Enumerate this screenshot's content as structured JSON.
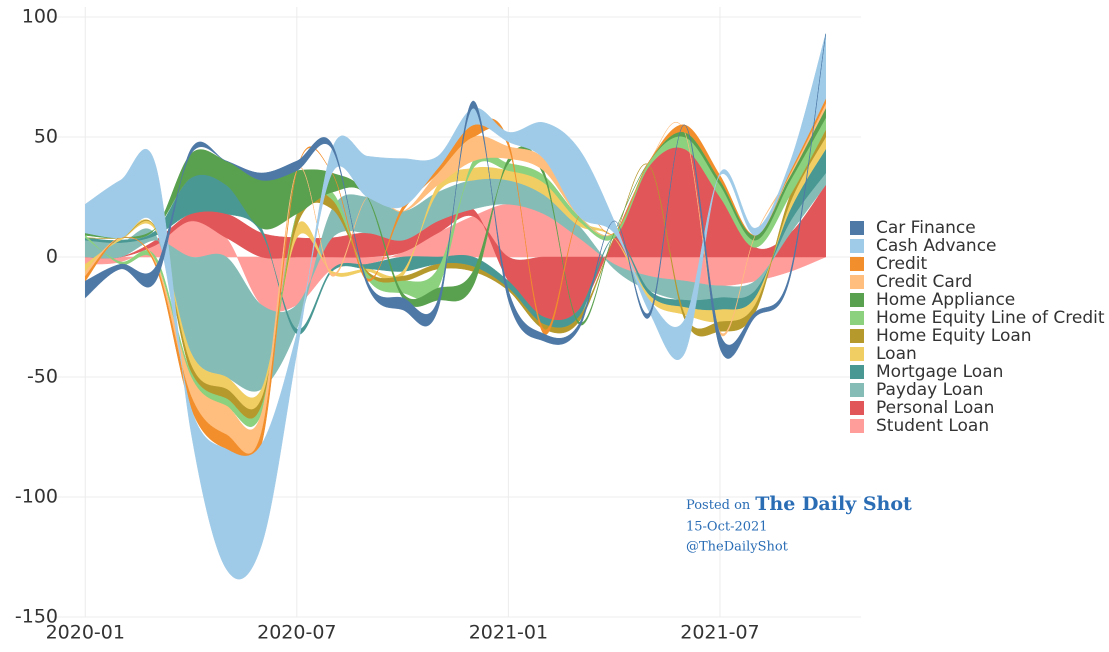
{
  "chart_data": {
    "type": "diverging-area",
    "x": [
      "2020-01",
      "2020-02",
      "2020-03",
      "2020-04",
      "2020-05",
      "2020-06",
      "2020-07",
      "2020-08",
      "2020-09",
      "2020-10",
      "2020-11",
      "2020-12",
      "2021-01",
      "2021-02",
      "2021-03",
      "2021-04",
      "2021-05",
      "2021-06",
      "2021-07",
      "2021-08",
      "2021-09",
      "2021-10"
    ],
    "xlim": [
      "2019-12",
      "2021-11"
    ],
    "xticks": [
      "2020-01",
      "2020-07",
      "2021-01",
      "2021-07"
    ],
    "ylim": [
      -150,
      100
    ],
    "yticks": [
      -150,
      -100,
      -50,
      0,
      50,
      100
    ],
    "grid": true,
    "legend": "right",
    "series": [
      {
        "name": "Student Loan",
        "color": "#ff9d9a",
        "values": [
          -3,
          -2,
          5,
          15,
          8,
          -20,
          -20,
          -5,
          -3,
          2,
          10,
          17,
          22,
          18,
          8,
          -3,
          -8,
          -10,
          -12,
          -10,
          -6,
          0
        ]
      },
      {
        "name": "Personal Loan",
        "color": "#e15759",
        "values": [
          0,
          0,
          2,
          3,
          10,
          10,
          8,
          8,
          10,
          5,
          5,
          3,
          -10,
          -25,
          -22,
          8,
          38,
          45,
          25,
          4,
          10,
          30
        ]
      },
      {
        "name": "Payday Loan",
        "color": "#86bcb6",
        "values": [
          7,
          6,
          2,
          -40,
          -50,
          -35,
          -10,
          12,
          15,
          12,
          12,
          12,
          10,
          8,
          5,
          -2,
          -6,
          -8,
          -5,
          -4,
          5,
          5
        ]
      },
      {
        "name": "Mortgage Loan",
        "color": "#499894",
        "values": [
          1,
          1,
          2,
          15,
          12,
          2,
          -2,
          -1,
          -2,
          -6,
          -3,
          -4,
          -3,
          -3,
          -3,
          0,
          -2,
          -3,
          -5,
          -3,
          5,
          10
        ]
      },
      {
        "name": "Loan",
        "color": "#f1ce63",
        "values": [
          -3,
          1,
          1,
          -5,
          -5,
          -4,
          5,
          -1,
          -1,
          -2,
          3,
          5,
          4,
          5,
          2,
          0,
          -2,
          -3,
          -5,
          -3,
          3,
          5
        ]
      },
      {
        "name": "Home Equity Loan",
        "color": "#b6992d",
        "values": [
          0,
          0,
          0,
          -3,
          -4,
          -3,
          5,
          4,
          -1,
          -2,
          -2,
          -2,
          -1,
          -2,
          -2,
          0,
          0,
          -2,
          -4,
          -3,
          3,
          3
        ]
      },
      {
        "name": "Home Equity Line of Credit",
        "color": "#8cd17d",
        "values": [
          1,
          -1,
          -2,
          -2,
          -3,
          -3,
          0,
          3,
          -2,
          -5,
          -8,
          3,
          3,
          3,
          2,
          2,
          2,
          5,
          5,
          3,
          6,
          5
        ]
      },
      {
        "name": "Home Appliance",
        "color": "#59a14f",
        "values": [
          1,
          0,
          0,
          10,
          10,
          20,
          18,
          8,
          0,
          -2,
          -5,
          -6,
          2,
          2,
          -1,
          0,
          0,
          2,
          2,
          2,
          2,
          4
        ]
      },
      {
        "name": "Credit Card",
        "color": "#ffbe7d",
        "values": [
          -2,
          0,
          -1,
          -8,
          -12,
          -8,
          0,
          -1,
          0,
          0,
          5,
          10,
          5,
          5,
          0,
          0,
          0,
          0,
          -1,
          0,
          1,
          2
        ]
      },
      {
        "name": "Credit",
        "color": "#f28e2b",
        "values": [
          -2,
          0,
          -1,
          -5,
          -6,
          -5,
          0,
          0,
          -1,
          2,
          2,
          5,
          2,
          -2,
          0,
          0,
          0,
          3,
          2,
          0,
          1,
          2
        ]
      },
      {
        "name": "Cash Advance",
        "color": "#a0cbe8",
        "values": [
          12,
          24,
          26,
          -10,
          -50,
          -42,
          -8,
          10,
          17,
          20,
          5,
          7,
          4,
          15,
          28,
          5,
          -5,
          -14,
          1,
          3,
          4,
          27
        ]
      },
      {
        "name": "Car Finance",
        "color": "#4e79a7",
        "values": [
          -7,
          -2,
          -6,
          2,
          0,
          3,
          4,
          2,
          -2,
          -5,
          -4,
          3,
          -4,
          -3,
          -2,
          0,
          -2,
          0,
          -6,
          -2,
          -2,
          0
        ]
      }
    ],
    "annotations": [
      "Posted on",
      "The Daily Shot",
      "15-Oct-2021",
      "@TheDailyShot"
    ]
  }
}
